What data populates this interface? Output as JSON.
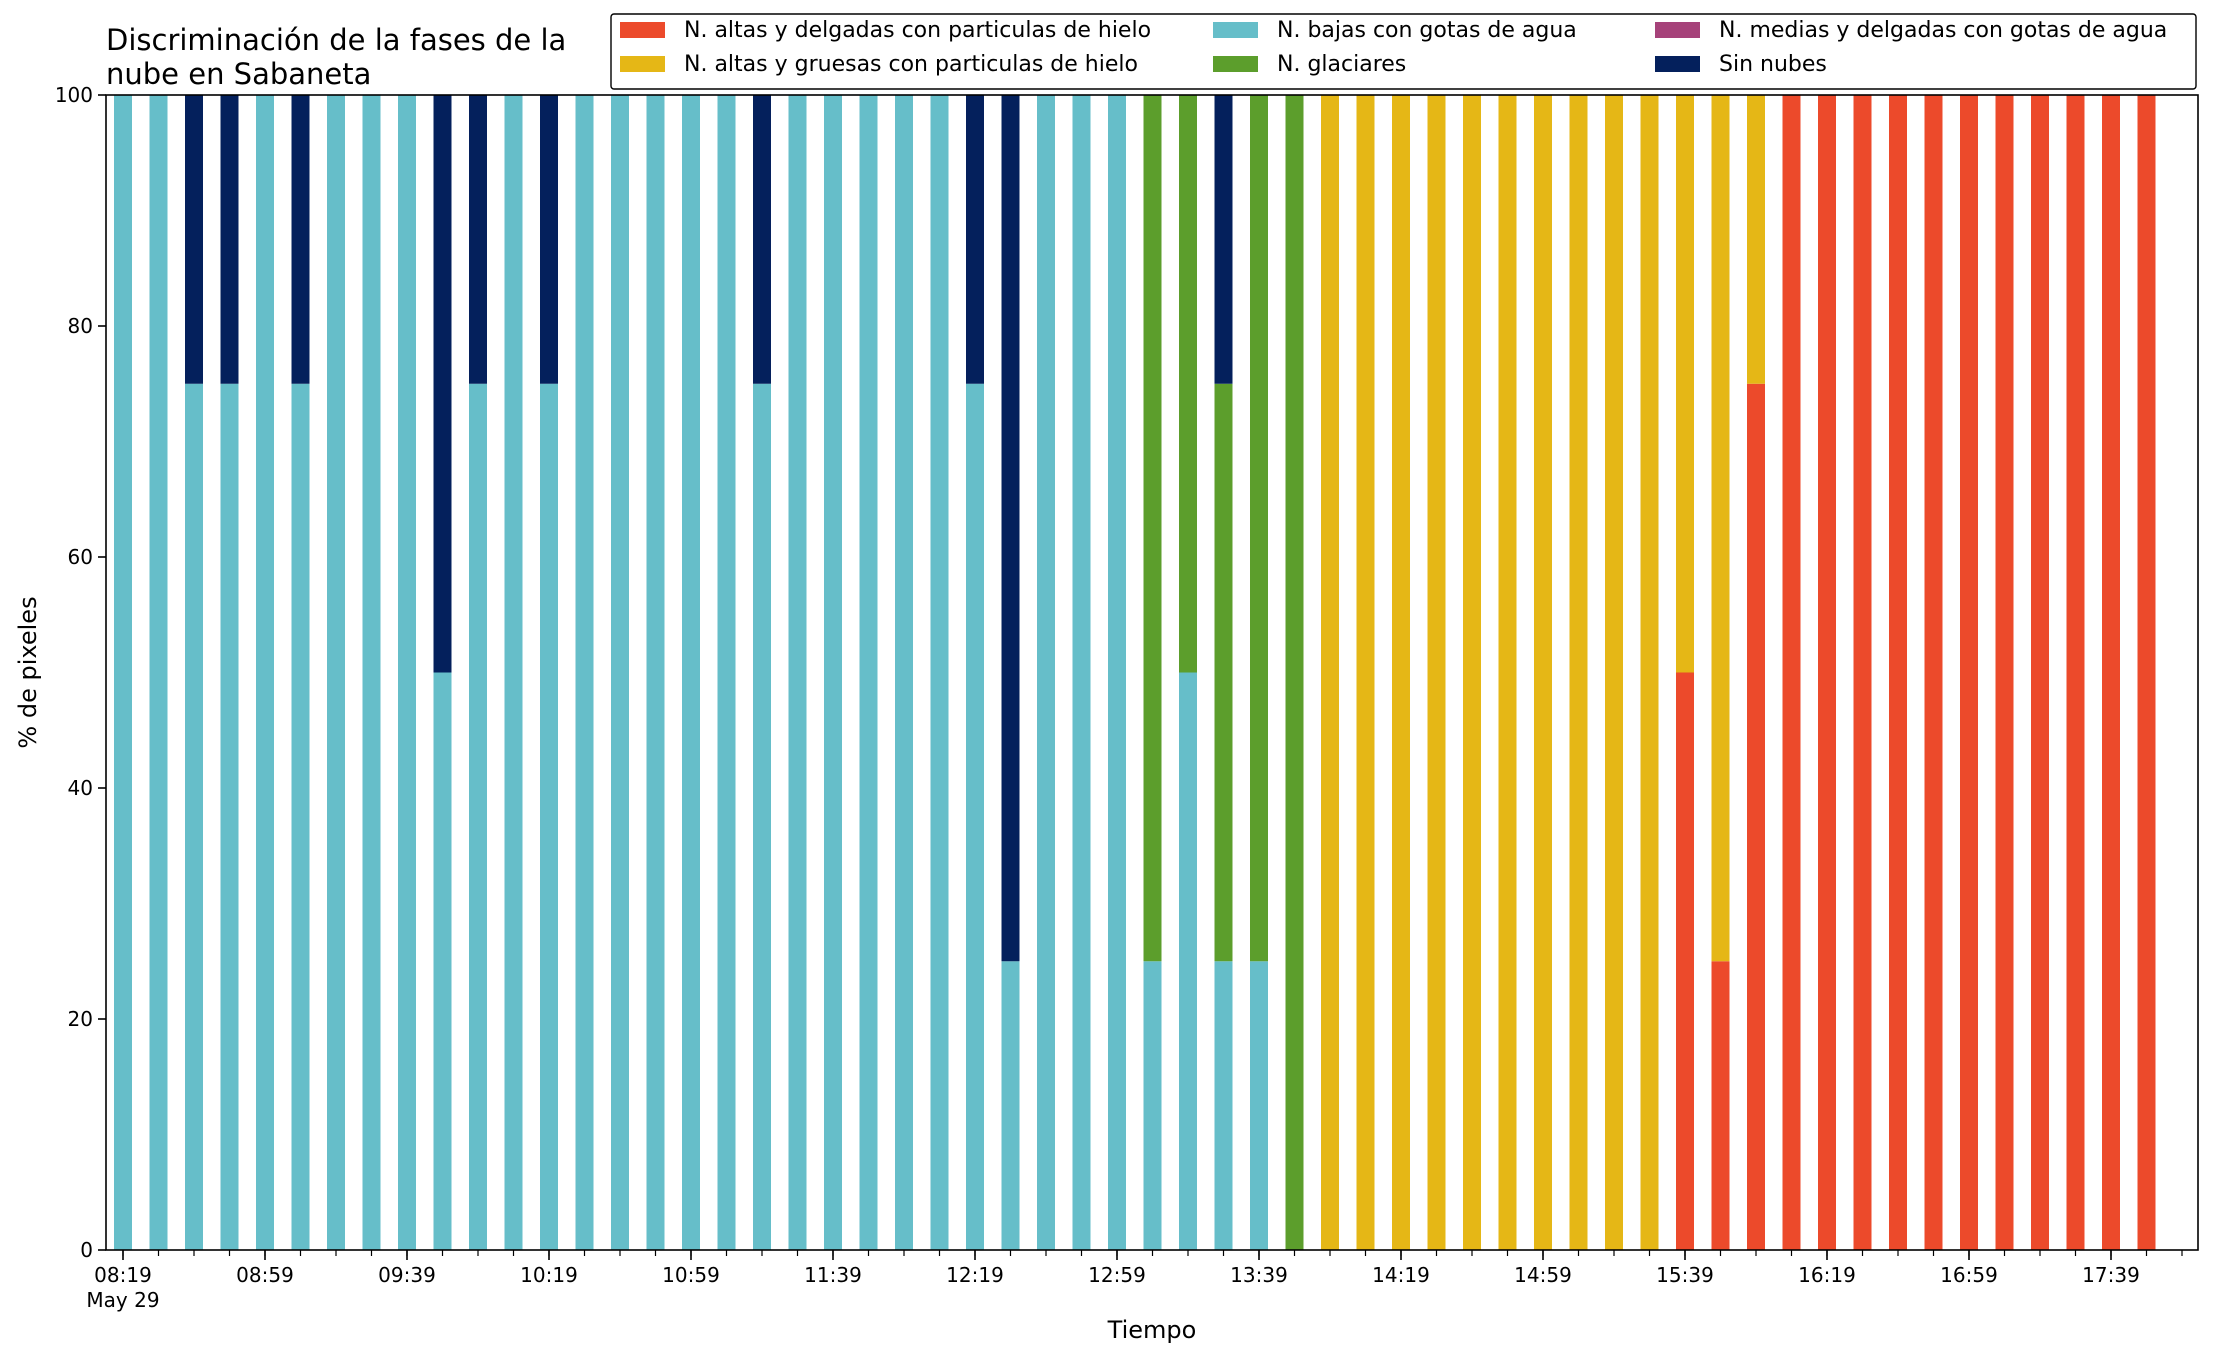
{
  "chart_data": {
    "type": "bar",
    "stacked": true,
    "title": "Discriminación de la fases de la\nnube en Sabaneta",
    "xlabel": "Tiempo",
    "ylabel": "% de pixeles",
    "ylim": [
      0,
      100
    ],
    "yticks": [
      0,
      20,
      40,
      60,
      80,
      100
    ],
    "grid": false,
    "legend_placement": "top-right",
    "x": [
      "08:19",
      "08:29",
      "08:39",
      "08:49",
      "08:59",
      "09:09",
      "09:19",
      "09:29",
      "09:39",
      "09:49",
      "09:59",
      "10:09",
      "10:19",
      "10:29",
      "10:39",
      "10:49",
      "10:59",
      "11:09",
      "11:19",
      "11:29",
      "11:39",
      "11:49",
      "11:59",
      "12:09",
      "12:19",
      "12:29",
      "12:39",
      "12:49",
      "12:59",
      "13:09",
      "13:19",
      "13:29",
      "13:39",
      "13:49",
      "13:59",
      "14:09",
      "14:19",
      "14:29",
      "14:39",
      "14:49",
      "14:59",
      "15:09",
      "15:19",
      "15:29",
      "15:39",
      "15:49",
      "15:59",
      "16:09",
      "16:19",
      "16:29",
      "16:39",
      "16:49",
      "16:59",
      "17:09",
      "17:19",
      "17:29",
      "17:39",
      "17:49"
    ],
    "xtick_labels": [
      {
        "label": "08:19",
        "sub": "May 29"
      },
      {
        "label": "08:59"
      },
      {
        "label": "09:39"
      },
      {
        "label": "10:19"
      },
      {
        "label": "10:59"
      },
      {
        "label": "11:39"
      },
      {
        "label": "12:19"
      },
      {
        "label": "12:59"
      },
      {
        "label": "13:39"
      },
      {
        "label": "14:19"
      },
      {
        "label": "14:59"
      },
      {
        "label": "15:39"
      },
      {
        "label": "16:19"
      },
      {
        "label": "16:59"
      },
      {
        "label": "17:39"
      }
    ],
    "series": [
      {
        "name": "N. altas y delgadas con particulas de hielo",
        "color": "#ec4a2b",
        "values": [
          0,
          0,
          0,
          0,
          0,
          0,
          0,
          0,
          0,
          0,
          0,
          0,
          0,
          0,
          0,
          0,
          0,
          0,
          0,
          0,
          0,
          0,
          0,
          0,
          0,
          0,
          0,
          0,
          0,
          0,
          0,
          0,
          0,
          0,
          0,
          0,
          0,
          0,
          0,
          0,
          0,
          0,
          0,
          0,
          50,
          25,
          75,
          100,
          100,
          100,
          100,
          100,
          100,
          100,
          100,
          100,
          100,
          100
        ]
      },
      {
        "name": "N. altas y gruesas con particulas de hielo",
        "color": "#e5b716",
        "values": [
          0,
          0,
          0,
          0,
          0,
          0,
          0,
          0,
          0,
          0,
          0,
          0,
          0,
          0,
          0,
          0,
          0,
          0,
          0,
          0,
          0,
          0,
          0,
          0,
          0,
          0,
          0,
          0,
          0,
          0,
          0,
          0,
          0,
          0,
          100,
          100,
          100,
          100,
          100,
          100,
          100,
          100,
          100,
          100,
          50,
          75,
          25,
          0,
          0,
          0,
          0,
          0,
          0,
          0,
          0,
          0,
          0,
          0
        ]
      },
      {
        "name": "N. bajas con gotas de agua",
        "color": "#66bec9",
        "values": [
          100,
          100,
          75,
          75,
          100,
          75,
          100,
          100,
          100,
          50,
          75,
          100,
          75,
          100,
          100,
          100,
          100,
          100,
          75,
          100,
          100,
          100,
          100,
          100,
          75,
          25,
          100,
          100,
          100,
          25,
          50,
          25,
          25,
          0,
          0,
          0,
          0,
          0,
          0,
          0,
          0,
          0,
          0,
          0,
          0,
          0,
          0,
          0,
          0,
          0,
          0,
          0,
          0,
          0,
          0,
          0,
          0,
          0
        ]
      },
      {
        "name": "N. glaciares",
        "color": "#5c9e2c",
        "values": [
          0,
          0,
          0,
          0,
          0,
          0,
          0,
          0,
          0,
          0,
          0,
          0,
          0,
          0,
          0,
          0,
          0,
          0,
          0,
          0,
          0,
          0,
          0,
          0,
          0,
          0,
          0,
          0,
          0,
          75,
          50,
          50,
          75,
          100,
          0,
          0,
          0,
          0,
          0,
          0,
          0,
          0,
          0,
          0,
          0,
          0,
          0,
          0,
          0,
          0,
          0,
          0,
          0,
          0,
          0,
          0,
          0,
          0
        ]
      },
      {
        "name": "N. medias y delgadas con gotas de agua",
        "color": "#a6427a",
        "values": [
          0,
          0,
          0,
          0,
          0,
          0,
          0,
          0,
          0,
          0,
          0,
          0,
          0,
          0,
          0,
          0,
          0,
          0,
          0,
          0,
          0,
          0,
          0,
          0,
          0,
          0,
          0,
          0,
          0,
          0,
          0,
          0,
          0,
          0,
          0,
          0,
          0,
          0,
          0,
          0,
          0,
          0,
          0,
          0,
          0,
          0,
          0,
          0,
          0,
          0,
          0,
          0,
          0,
          0,
          0,
          0,
          0,
          0
        ]
      },
      {
        "name": "Sin nubes",
        "color": "#04205c",
        "values": [
          0,
          0,
          25,
          25,
          0,
          25,
          0,
          0,
          0,
          50,
          25,
          0,
          25,
          0,
          0,
          0,
          0,
          0,
          25,
          0,
          0,
          0,
          0,
          0,
          25,
          75,
          0,
          0,
          0,
          0,
          0,
          25,
          0,
          0,
          0,
          0,
          0,
          0,
          0,
          0,
          0,
          0,
          0,
          0,
          0,
          0,
          0,
          0,
          0,
          0,
          0,
          0,
          0,
          0,
          0,
          0,
          0,
          0
        ]
      }
    ],
    "stack_order": [
      "N. altas y delgadas con particulas de hielo",
      "N. altas y gruesas con particulas de hielo",
      "N. bajas con gotas de agua",
      "N. glaciares",
      "N. medias y delgadas con gotas de agua",
      "Sin nubes"
    ]
  }
}
